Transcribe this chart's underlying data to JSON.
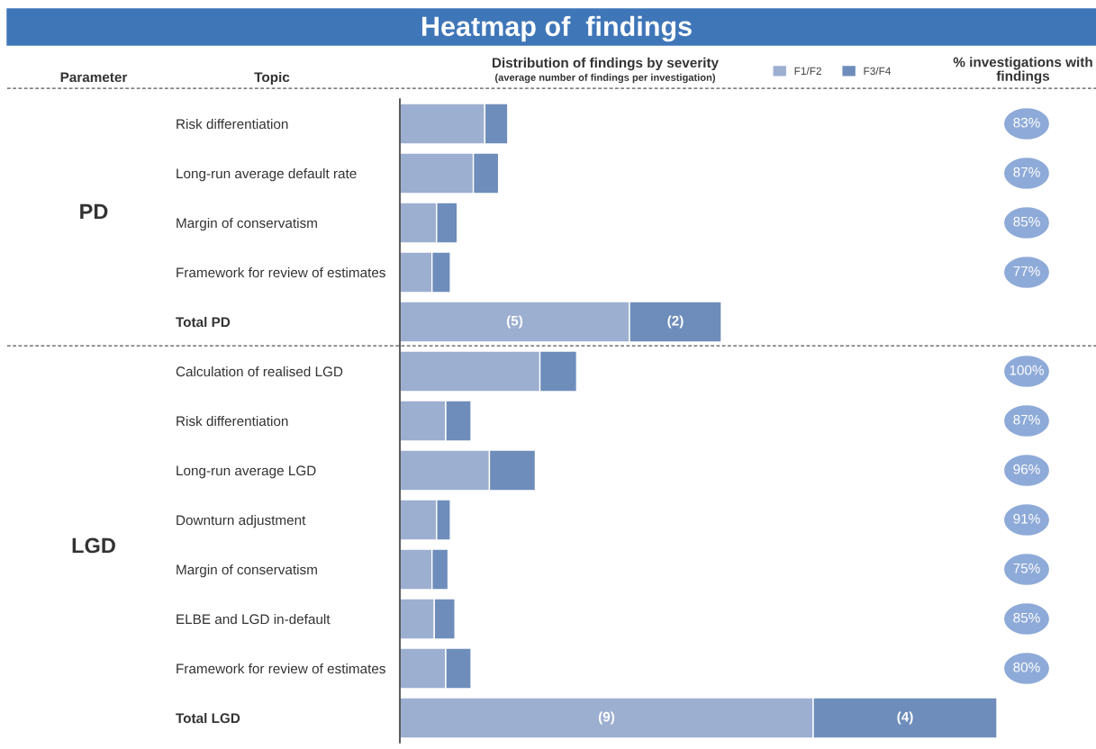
{
  "chart_data": [
    {
      "type": "bar",
      "orientation": "horizontal",
      "stacked": true,
      "tick_labels": "y",
      "title": "Heatmap of  findings",
      "subtitle": "Distribution of findings by severity",
      "legend": "top right",
      "annotations": [
        "Parameter",
        "Topic",
        "(average number of findings per investigation)",
        "PD",
        "LGD"
      ],
      "categories": [
        "Risk differentiation",
        "Long-run average default rate",
        "Margin of conservatism",
        "Framework for review of estimates",
        "Total PD",
        "Calculation of realised LGD",
        "Risk differentiation",
        "Long-run average LGD",
        "Downturn adjustment",
        "Margin of conservatism",
        "ELBE and LGD in-default",
        "Framework for review of estimates",
        "Total LGD"
      ],
      "series": [
        {
          "name": "F1/F2",
          "color": "#9dafd0",
          "values": [
            1.85,
            1.6,
            0.8,
            0.7,
            5,
            3.05,
            1.0,
            1.95,
            0.8,
            0.7,
            0.75,
            1.0,
            9
          ],
          "value_labels": [
            null,
            null,
            null,
            null,
            "(5)",
            null,
            null,
            null,
            null,
            null,
            null,
            null,
            "(9)"
          ]
        },
        {
          "name": "F3/F4",
          "color": "#6e8dbb",
          "values": [
            0.5,
            0.55,
            0.45,
            0.4,
            2,
            0.8,
            0.55,
            1.0,
            0.3,
            0.35,
            0.45,
            0.55,
            4
          ],
          "value_labels": [
            null,
            null,
            null,
            null,
            "(2)",
            null,
            null,
            null,
            null,
            null,
            null,
            null,
            "(4)"
          ]
        }
      ]
    },
    {
      "type": "other",
      "title": "% investigations with\nfindings",
      "color": "#8eaad8",
      "categories": [
        null,
        null,
        null,
        null,
        null,
        null,
        null,
        null,
        null,
        null,
        null,
        null,
        null
      ],
      "value_labels": [
        "83%",
        "87%",
        "85%",
        "77%",
        null,
        "100%",
        "87%",
        "96%",
        "91%",
        "75%",
        "85%",
        "80%",
        null
      ]
    }
  ]
}
